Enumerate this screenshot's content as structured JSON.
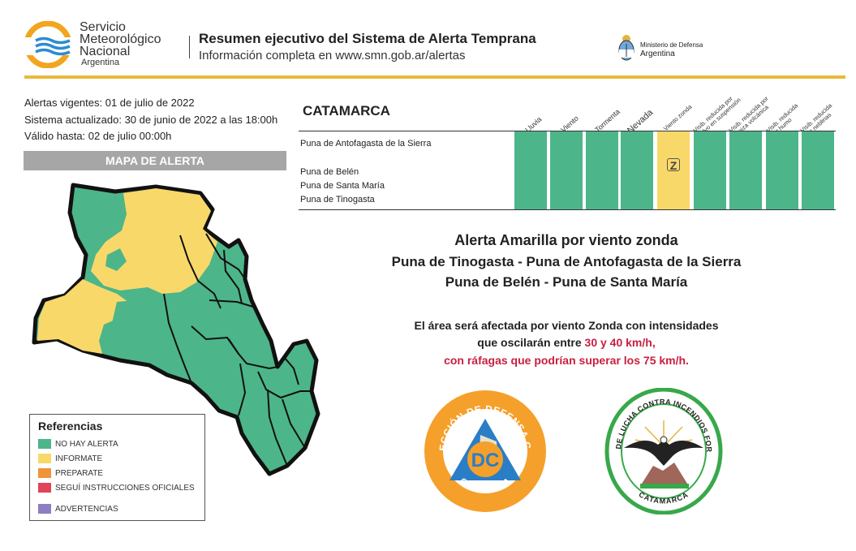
{
  "header": {
    "org_line1": "Servicio",
    "org_line2": "Meteorológico",
    "org_line3": "Nacional",
    "org_line4": "Argentina",
    "title": "Resumen ejecutivo del Sistema de Alerta Temprana",
    "subtitle": "Información completa en www.smn.gob.ar/alertas",
    "ministry_line1": "Ministerio de Defensa",
    "ministry_line2": "Argentina"
  },
  "info": {
    "vigentes": "Alertas vigentes: 01 de julio de 2022",
    "actualizado": "Sistema actualizado: 30 de junio de 2022 a las 18:00h",
    "valido": "Válido hasta: 02 de julio 00:00h"
  },
  "map": {
    "title": "MAPA DE ALERTA"
  },
  "legend": {
    "title": "Referencias",
    "items": [
      {
        "label": "NO HAY ALERTA",
        "color": "#4db58a"
      },
      {
        "label": "INFORMATE",
        "color": "#f9d86a"
      },
      {
        "label": "PREPARATE",
        "color": "#f0933a"
      },
      {
        "label": "SEGUÍ INSTRUCCIONES OFICIALES",
        "color": "#e04456"
      },
      {
        "label": "ADVERTENCIAS",
        "color": "#8c7ec1"
      }
    ]
  },
  "table": {
    "province": "CATAMARCA",
    "zones": [
      "Puna de Antofagasta de la Sierra",
      "Puna de Belén",
      "Puna de Santa María",
      "Puna de Tinogasta"
    ],
    "columns": [
      {
        "label": "Lluvia"
      },
      {
        "label": "Viento"
      },
      {
        "label": "Tormenta"
      },
      {
        "label": "Nevada"
      },
      {
        "label": "Viento zonda"
      },
      {
        "label1": "Visib. reducida por",
        "label2": "polvo en suspensión"
      },
      {
        "label1": "Visib. reducida por",
        "label2": "ceniza volcánica"
      },
      {
        "label1": "Visib. reducida",
        "label2": "por humo"
      },
      {
        "label1": "Visib. reducida",
        "label2": "por neblinas"
      }
    ],
    "zonda_mark": "Z",
    "colors": {
      "green": "#4db58a",
      "yellow": "#f9d86a"
    }
  },
  "alert": {
    "title": "Alerta Amarilla por viento zonda",
    "areas_line1": "Puna de Tinogasta - Puna de Antofagasta de la Sierra",
    "areas_line2": "Puna de Belén - Puna de Santa María",
    "desc_line1": "El área será afectada por viento Zonda con intensidades",
    "desc_line2a": "que oscilarán entre ",
    "desc_line2b": "30 y 40 km/h,",
    "desc_line3": "con ráfagas que podrían superar los 75 km/h."
  },
  "logos": {
    "dc_ring_text": "DIRECCIÓN DE DEFENSA CIVIL",
    "dc_initials": "DC",
    "dc_bottom": "CATAMARCA",
    "brigada_ring_text": "BRIGADA DE LUCHA CONTRA INCENDIOS FORESTALES",
    "brigada_bottom": "CATAMARCA"
  }
}
